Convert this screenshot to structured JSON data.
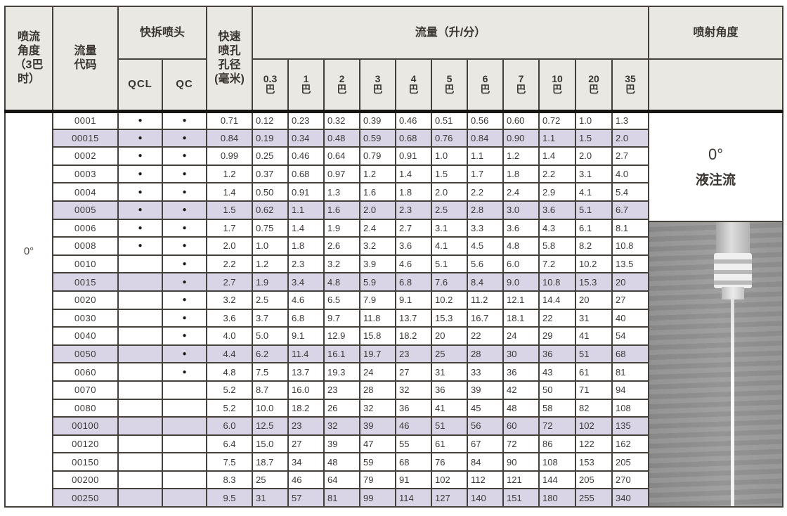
{
  "table": {
    "header": {
      "spray_flow_angle": "喷流\n角度\n（3巴\n时）",
      "flow_code": "流量\n代码",
      "quick_release_nozzle": "快拆喷头",
      "qcl": "QCL",
      "qc": "QC",
      "orifice_diameter": "快速\n喷孔\n孔径\n(毫米)",
      "flow_rate_group": "流量（升/分）",
      "pressure_columns": [
        "0.3\n巴",
        "1\n巴",
        "2\n巴",
        "3\n巴",
        "4\n巴",
        "5\n巴",
        "6\n巴",
        "7\n巴",
        "10\n巴",
        "20\n巴",
        "35\n巴"
      ],
      "spray_angle": "喷射角度"
    },
    "presence_dot": "●",
    "left_span_label": "0°",
    "rows": [
      {
        "code": "0001",
        "qcl": true,
        "qc": true,
        "diameter": "0.71",
        "shaded": false,
        "flows": [
          "0.12",
          "0.23",
          "0.32",
          "0.39",
          "0.46",
          "0.51",
          "0.56",
          "0.60",
          "0.72",
          "1.0",
          "1.3"
        ]
      },
      {
        "code": "00015",
        "qcl": true,
        "qc": true,
        "diameter": "0.84",
        "shaded": true,
        "flows": [
          "0.19",
          "0.34",
          "0.48",
          "0.59",
          "0.68",
          "0.76",
          "0.84",
          "0.90",
          "1.1",
          "1.5",
          "2.0"
        ]
      },
      {
        "code": "0002",
        "qcl": true,
        "qc": true,
        "diameter": "0.99",
        "shaded": false,
        "flows": [
          "0.25",
          "0.46",
          "0.64",
          "0.79",
          "0.91",
          "1.0",
          "1.1",
          "1.2",
          "1.4",
          "2.0",
          "2.7"
        ]
      },
      {
        "code": "0003",
        "qcl": true,
        "qc": true,
        "diameter": "1.2",
        "shaded": false,
        "flows": [
          "0.37",
          "0.68",
          "0.97",
          "1.2",
          "1.4",
          "1.5",
          "1.7",
          "1.8",
          "2.2",
          "3.1",
          "4.0"
        ]
      },
      {
        "code": "0004",
        "qcl": true,
        "qc": true,
        "diameter": "1.4",
        "shaded": false,
        "flows": [
          "0.50",
          "0.91",
          "1.3",
          "1.6",
          "1.8",
          "2.0",
          "2.2",
          "2.4",
          "2.9",
          "4.1",
          "5.4"
        ]
      },
      {
        "code": "0005",
        "qcl": true,
        "qc": true,
        "diameter": "1.5",
        "shaded": true,
        "flows": [
          "0.62",
          "1.1",
          "1.6",
          "2.0",
          "2.3",
          "2.5",
          "2.8",
          "3.0",
          "3.6",
          "5.1",
          "6.7"
        ]
      },
      {
        "code": "0006",
        "qcl": true,
        "qc": true,
        "diameter": "1.7",
        "shaded": false,
        "flows": [
          "0.75",
          "1.4",
          "1.9",
          "2.4",
          "2.7",
          "3.1",
          "3.3",
          "3.6",
          "4.3",
          "6.1",
          "8.1"
        ]
      },
      {
        "code": "0008",
        "qcl": true,
        "qc": true,
        "diameter": "2.0",
        "shaded": false,
        "flows": [
          "1.0",
          "1.8",
          "2.6",
          "3.2",
          "3.6",
          "4.1",
          "4.5",
          "4.8",
          "5.8",
          "8.2",
          "10.8"
        ]
      },
      {
        "code": "0010",
        "qcl": false,
        "qc": true,
        "diameter": "2.2",
        "shaded": false,
        "flows": [
          "1.2",
          "2.3",
          "3.2",
          "3.9",
          "4.6",
          "5.1",
          "5.6",
          "6.0",
          "7.2",
          "10.2",
          "13.5"
        ]
      },
      {
        "code": "0015",
        "qcl": false,
        "qc": true,
        "diameter": "2.7",
        "shaded": true,
        "flows": [
          "1.9",
          "3.4",
          "4.8",
          "5.9",
          "6.8",
          "7.6",
          "8.4",
          "9.0",
          "10.8",
          "15.3",
          "20"
        ]
      },
      {
        "code": "0020",
        "qcl": false,
        "qc": true,
        "diameter": "3.2",
        "shaded": false,
        "flows": [
          "2.5",
          "4.6",
          "6.5",
          "7.9",
          "9.1",
          "10.2",
          "11.2",
          "12.1",
          "14.4",
          "20",
          "27"
        ]
      },
      {
        "code": "0030",
        "qcl": false,
        "qc": true,
        "diameter": "3.6",
        "shaded": false,
        "flows": [
          "3.7",
          "6.8",
          "9.7",
          "11.8",
          "13.7",
          "15.3",
          "16.7",
          "18.1",
          "22",
          "31",
          "40"
        ]
      },
      {
        "code": "0040",
        "qcl": false,
        "qc": true,
        "diameter": "4.0",
        "shaded": false,
        "flows": [
          "5.0",
          "9.1",
          "12.9",
          "15.8",
          "18.2",
          "20",
          "22",
          "24",
          "29",
          "41",
          "54"
        ]
      },
      {
        "code": "0050",
        "qcl": false,
        "qc": true,
        "diameter": "4.4",
        "shaded": true,
        "flows": [
          "6.2",
          "11.4",
          "16.1",
          "19.7",
          "23",
          "25",
          "28",
          "30",
          "36",
          "51",
          "68"
        ]
      },
      {
        "code": "0060",
        "qcl": false,
        "qc": true,
        "diameter": "4.8",
        "shaded": false,
        "flows": [
          "7.5",
          "13.7",
          "19.3",
          "24",
          "27",
          "31",
          "33",
          "36",
          "43",
          "61",
          "81"
        ]
      },
      {
        "code": "0070",
        "qcl": false,
        "qc": false,
        "diameter": "5.2",
        "shaded": false,
        "flows": [
          "8.7",
          "16.0",
          "23",
          "28",
          "32",
          "36",
          "39",
          "42",
          "50",
          "71",
          "94"
        ]
      },
      {
        "code": "0080",
        "qcl": false,
        "qc": false,
        "diameter": "5.2",
        "shaded": false,
        "flows": [
          "10.0",
          "18.2",
          "26",
          "32",
          "36",
          "41",
          "45",
          "48",
          "58",
          "82",
          "108"
        ]
      },
      {
        "code": "00100",
        "qcl": false,
        "qc": false,
        "diameter": "6.0",
        "shaded": true,
        "flows": [
          "12.5",
          "23",
          "32",
          "39",
          "46",
          "51",
          "56",
          "60",
          "72",
          "102",
          "135"
        ]
      },
      {
        "code": "00120",
        "qcl": false,
        "qc": false,
        "diameter": "6.4",
        "shaded": false,
        "flows": [
          "15.0",
          "27",
          "39",
          "47",
          "55",
          "61",
          "67",
          "72",
          "86",
          "122",
          "162"
        ]
      },
      {
        "code": "00150",
        "qcl": false,
        "qc": false,
        "diameter": "7.5",
        "shaded": false,
        "flows": [
          "18.7",
          "34",
          "48",
          "59",
          "68",
          "76",
          "84",
          "90",
          "108",
          "153",
          "205"
        ]
      },
      {
        "code": "00200",
        "qcl": false,
        "qc": false,
        "diameter": "8.3",
        "shaded": false,
        "flows": [
          "25",
          "46",
          "64",
          "79",
          "91",
          "102",
          "112",
          "121",
          "144",
          "205",
          "270"
        ]
      },
      {
        "code": "00250",
        "qcl": false,
        "qc": false,
        "diameter": "9.5",
        "shaded": true,
        "flows": [
          "31",
          "57",
          "81",
          "99",
          "114",
          "127",
          "140",
          "151",
          "180",
          "255",
          "340"
        ]
      }
    ]
  },
  "side_panel": {
    "angle": "0°",
    "stream_type": "液注流",
    "photo_icon": "nozzle-straight-jet-photo"
  },
  "colors": {
    "header_bg": "#e9e8e3",
    "row_shaded_bg": "#d9d5e6",
    "grid_line": "#45403a",
    "photo_bg": "#969696"
  }
}
